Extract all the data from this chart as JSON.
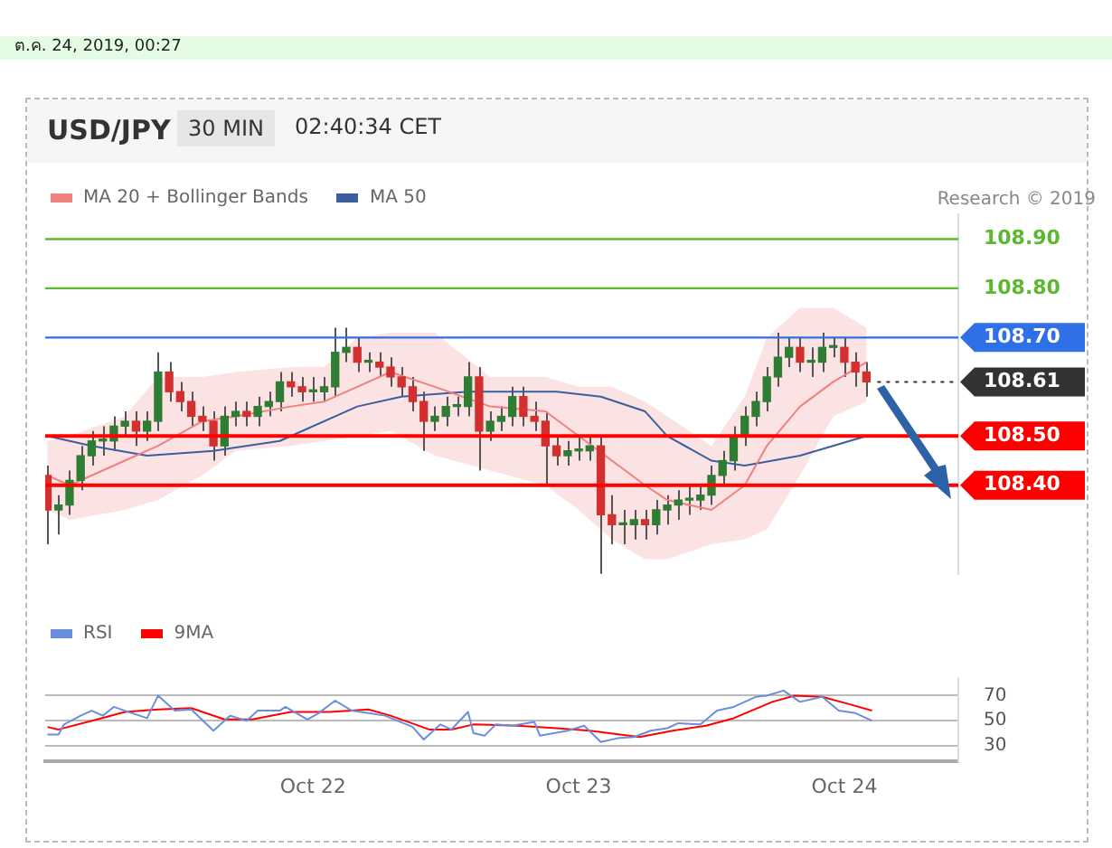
{
  "chart_data": [
    {
      "type": "candlestick",
      "title": "USD/JPY",
      "subtitle": "30 MIN",
      "annotations": [
        "ต.ค. 24, 2019, 00:27",
        "02:40:34 CET",
        "Research © 2019"
      ],
      "x": [
        "2019-10-21T00:00",
        "2019-10-21T01:00",
        "2019-10-21T02:00",
        "2019-10-21T03:00",
        "2019-10-21T04:00",
        "2019-10-21T05:00",
        "2019-10-21T06:00",
        "2019-10-21T07:00",
        "2019-10-21T08:00",
        "2019-10-21T09:00",
        "2019-10-21T10:00",
        "2019-10-21T11:00",
        "2019-10-21T12:00",
        "2019-10-21T13:00",
        "2019-10-21T14:00",
        "2019-10-21T15:00",
        "2019-10-21T16:00",
        "2019-10-21T17:00",
        "2019-10-21T18:00",
        "2019-10-21T19:00",
        "2019-10-21T20:00",
        "2019-10-21T21:00",
        "2019-10-21T22:00",
        "2019-10-21T23:00",
        "2019-10-22T00:00",
        "2019-10-22T01:00",
        "2019-10-22T02:00",
        "2019-10-22T03:00",
        "2019-10-22T04:00",
        "2019-10-22T05:00",
        "2019-10-22T06:00",
        "2019-10-22T07:00",
        "2019-10-22T08:00",
        "2019-10-22T09:00",
        "2019-10-22T10:00",
        "2019-10-22T11:00",
        "2019-10-22T12:00",
        "2019-10-22T13:00",
        "2019-10-22T14:00",
        "2019-10-22T15:00",
        "2019-10-22T16:00",
        "2019-10-22T17:00",
        "2019-10-22T18:00",
        "2019-10-22T19:00",
        "2019-10-22T20:00",
        "2019-10-22T21:00",
        "2019-10-22T22:00",
        "2019-10-22T23:00",
        "2019-10-23T00:00",
        "2019-10-23T01:00",
        "2019-10-23T02:00",
        "2019-10-23T03:00",
        "2019-10-23T04:00",
        "2019-10-23T05:00",
        "2019-10-23T06:00",
        "2019-10-23T07:00",
        "2019-10-23T08:00",
        "2019-10-23T09:00",
        "2019-10-23T10:00",
        "2019-10-23T11:00",
        "2019-10-23T12:00",
        "2019-10-23T13:00",
        "2019-10-23T14:00",
        "2019-10-23T15:00",
        "2019-10-23T16:00",
        "2019-10-23T17:00",
        "2019-10-23T18:00",
        "2019-10-23T19:00",
        "2019-10-23T20:00",
        "2019-10-23T21:00",
        "2019-10-23T22:00",
        "2019-10-23T23:00",
        "2019-10-24T00:00",
        "2019-10-24T01:00",
        "2019-10-24T02:00"
      ],
      "ohlc": [
        [
          108.42,
          108.44,
          108.28,
          108.35
        ],
        [
          108.35,
          108.38,
          108.3,
          108.36
        ],
        [
          108.36,
          108.43,
          108.34,
          108.41
        ],
        [
          108.41,
          108.48,
          108.39,
          108.46
        ],
        [
          108.46,
          108.51,
          108.44,
          108.49
        ],
        [
          108.49,
          108.52,
          108.46,
          108.49
        ],
        [
          108.49,
          108.54,
          108.47,
          108.52
        ],
        [
          108.52,
          108.55,
          108.5,
          108.53
        ],
        [
          108.53,
          108.55,
          108.48,
          108.51
        ],
        [
          108.51,
          108.55,
          108.49,
          108.53
        ],
        [
          108.53,
          108.67,
          108.51,
          108.63
        ],
        [
          108.63,
          108.65,
          108.57,
          108.59
        ],
        [
          108.59,
          108.61,
          108.55,
          108.57
        ],
        [
          108.57,
          108.59,
          108.52,
          108.54
        ],
        [
          108.54,
          108.56,
          108.51,
          108.53
        ],
        [
          108.53,
          108.55,
          108.45,
          108.48
        ],
        [
          108.48,
          108.56,
          108.46,
          108.54
        ],
        [
          108.54,
          108.57,
          108.52,
          108.55
        ],
        [
          108.55,
          108.57,
          108.52,
          108.54
        ],
        [
          108.54,
          108.58,
          108.52,
          108.56
        ],
        [
          108.56,
          108.59,
          108.54,
          108.57
        ],
        [
          108.57,
          108.63,
          108.55,
          108.61
        ],
        [
          108.61,
          108.63,
          108.58,
          108.6
        ],
        [
          108.6,
          108.62,
          108.57,
          108.59
        ],
        [
          108.59,
          108.62,
          108.57,
          108.59
        ],
        [
          108.59,
          108.62,
          108.57,
          108.6
        ],
        [
          108.6,
          108.72,
          108.58,
          108.67
        ],
        [
          108.67,
          108.72,
          108.65,
          108.68
        ],
        [
          108.68,
          108.7,
          108.63,
          108.65
        ],
        [
          108.65,
          108.67,
          108.63,
          108.65
        ],
        [
          108.65,
          108.67,
          108.62,
          108.64
        ],
        [
          108.64,
          108.66,
          108.6,
          108.62
        ],
        [
          108.62,
          108.64,
          108.58,
          108.6
        ],
        [
          108.6,
          108.62,
          108.55,
          108.57
        ],
        [
          108.57,
          108.59,
          108.47,
          108.53
        ],
        [
          108.53,
          108.56,
          108.51,
          108.54
        ],
        [
          108.54,
          108.58,
          108.52,
          108.56
        ],
        [
          108.56,
          108.58,
          108.54,
          108.56
        ],
        [
          108.56,
          108.65,
          108.54,
          108.62
        ],
        [
          108.62,
          108.64,
          108.43,
          108.51
        ],
        [
          108.51,
          108.55,
          108.49,
          108.53
        ],
        [
          108.53,
          108.56,
          108.51,
          108.54
        ],
        [
          108.54,
          108.6,
          108.52,
          108.58
        ],
        [
          108.58,
          108.6,
          108.52,
          108.54
        ],
        [
          108.54,
          108.57,
          108.51,
          108.53
        ],
        [
          108.53,
          108.55,
          108.4,
          108.48
        ],
        [
          108.48,
          108.5,
          108.44,
          108.46
        ],
        [
          108.46,
          108.49,
          108.44,
          108.47
        ],
        [
          108.47,
          108.5,
          108.45,
          108.47
        ],
        [
          108.47,
          108.5,
          108.45,
          108.48
        ],
        [
          108.48,
          108.5,
          108.22,
          108.34
        ],
        [
          108.34,
          108.38,
          108.28,
          108.32
        ],
        [
          108.32,
          108.35,
          108.28,
          108.32
        ],
        [
          108.32,
          108.35,
          108.29,
          108.33
        ],
        [
          108.33,
          108.35,
          108.29,
          108.32
        ],
        [
          108.32,
          108.37,
          108.3,
          108.35
        ],
        [
          108.35,
          108.38,
          108.32,
          108.36
        ],
        [
          108.36,
          108.39,
          108.33,
          108.37
        ],
        [
          108.37,
          108.4,
          108.34,
          108.37
        ],
        [
          108.37,
          108.4,
          108.35,
          108.38
        ],
        [
          108.38,
          108.44,
          108.36,
          108.42
        ],
        [
          108.42,
          108.47,
          108.4,
          108.45
        ],
        [
          108.45,
          108.52,
          108.43,
          108.5
        ],
        [
          108.5,
          108.56,
          108.48,
          108.54
        ],
        [
          108.54,
          108.59,
          108.52,
          108.57
        ],
        [
          108.57,
          108.64,
          108.55,
          108.62
        ],
        [
          108.62,
          108.71,
          108.6,
          108.66
        ],
        [
          108.66,
          108.7,
          108.64,
          108.68
        ],
        [
          108.68,
          108.7,
          108.63,
          108.65
        ],
        [
          108.65,
          108.68,
          108.62,
          108.65
        ],
        [
          108.65,
          108.71,
          108.63,
          108.68
        ],
        [
          108.68,
          108.7,
          108.66,
          108.68
        ],
        [
          108.68,
          108.7,
          108.62,
          108.65
        ],
        [
          108.65,
          108.67,
          108.6,
          108.63
        ],
        [
          108.63,
          108.65,
          108.58,
          108.61
        ]
      ],
      "series": [
        {
          "name": "MA 20 + Bollinger Bands",
          "type": "line",
          "color": "#f08080",
          "x": [
            "2019-10-21T00:00",
            "2019-10-21T02:00",
            "2019-10-21T07:00",
            "2019-10-21T10:00",
            "2019-10-21T14:00",
            "2019-10-21T17:00",
            "2019-10-21T22:00",
            "2019-10-22T01:00",
            "2019-10-22T04:00",
            "2019-10-22T07:00",
            "2019-10-22T11:00",
            "2019-10-22T16:00",
            "2019-10-22T21:00",
            "2019-10-23T00:00",
            "2019-10-23T03:00",
            "2019-10-23T06:00",
            "2019-10-23T08:00",
            "2019-10-23T12:00",
            "2019-10-23T15:00",
            "2019-10-23T17:00",
            "2019-10-23T20:00",
            "2019-10-23T23:00",
            "2019-10-24T02:00"
          ],
          "values": [
            108.42,
            108.4,
            108.45,
            108.48,
            108.53,
            108.54,
            108.56,
            108.57,
            108.6,
            108.63,
            108.6,
            108.56,
            108.55,
            108.5,
            108.45,
            108.4,
            108.37,
            108.35,
            108.4,
            108.48,
            108.56,
            108.61,
            108.65
          ],
          "lower": [
            108.35,
            108.33,
            108.35,
            108.37,
            108.42,
            108.47,
            108.48,
            108.49,
            108.5,
            108.51,
            108.46,
            108.43,
            108.4,
            108.35,
            108.29,
            108.25,
            108.25,
            108.28,
            108.29,
            108.31,
            108.42,
            108.54,
            108.57
          ],
          "upper": [
            108.49,
            108.5,
            108.54,
            108.62,
            108.62,
            108.63,
            108.64,
            108.64,
            108.7,
            108.71,
            108.71,
            108.62,
            108.62,
            108.6,
            108.6,
            108.57,
            108.54,
            108.48,
            108.58,
            108.7,
            108.76,
            108.76,
            108.72
          ]
        },
        {
          "name": "MA 50",
          "type": "line",
          "color": "#3a5fa0",
          "x": [
            "2019-10-21T00:00",
            "2019-10-21T04:00",
            "2019-10-21T09:00",
            "2019-10-21T15:00",
            "2019-10-21T21:00",
            "2019-10-22T04:00",
            "2019-10-22T08:00",
            "2019-10-22T14:00",
            "2019-10-22T22:00",
            "2019-10-23T02:00",
            "2019-10-23T06:00",
            "2019-10-23T08:00",
            "2019-10-23T12:00",
            "2019-10-23T15:00",
            "2019-10-23T20:00",
            "2019-10-24T02:00"
          ],
          "values": [
            108.5,
            108.48,
            108.46,
            108.47,
            108.49,
            108.56,
            108.58,
            108.59,
            108.59,
            108.58,
            108.55,
            108.5,
            108.45,
            108.44,
            108.46,
            108.5
          ]
        }
      ],
      "xlim": [
        "2019-10-20T23:48",
        "2019-10-24T10:18"
      ],
      "ylim": [
        108.22,
        108.95
      ],
      "yticks": [
        {
          "value": 108.4,
          "label": "108.40"
        },
        {
          "value": 108.5,
          "label": "108.50"
        },
        {
          "value": 108.61,
          "label": "108.61"
        },
        {
          "value": 108.7,
          "label": "108.70"
        },
        {
          "value": 108.8,
          "label": "108.80"
        },
        {
          "value": 108.9,
          "label": "108.90"
        }
      ],
      "tick_labels": "y",
      "legend": "top left",
      "marker": "none",
      "ref_lines": [
        {
          "axis": "y",
          "value": 108.9,
          "color": "#5cb82e"
        },
        {
          "axis": "y",
          "value": 108.8,
          "color": "#5cb82e"
        },
        {
          "axis": "y",
          "value": 108.7,
          "color": "#2f6fe8"
        },
        {
          "axis": "y",
          "value": 108.61,
          "color": "#333333",
          "line_style": "dotted"
        },
        {
          "axis": "y",
          "value": 108.5,
          "color": "#ff0000"
        },
        {
          "axis": "y",
          "value": 108.4,
          "color": "#ff0000"
        }
      ]
    },
    {
      "type": "line",
      "series": [
        {
          "name": "RSI",
          "color": "#6a8de0",
          "x": [
            "2019-10-21T00:00",
            "2019-10-21T01:00",
            "2019-10-21T01:30",
            "2019-10-21T03:00",
            "2019-10-21T04:00",
            "2019-10-21T05:00",
            "2019-10-21T06:00",
            "2019-10-21T07:00",
            "2019-10-21T09:00",
            "2019-10-21T10:00",
            "2019-10-21T11:30",
            "2019-10-21T13:00",
            "2019-10-21T15:00",
            "2019-10-21T16:30",
            "2019-10-21T18:00",
            "2019-10-21T19:00",
            "2019-10-21T21:00",
            "2019-10-21T21:30",
            "2019-10-21T23:30",
            "2019-10-22T00:30",
            "2019-10-22T02:00",
            "2019-10-22T03:30",
            "2019-10-22T05:00",
            "2019-10-22T06:30",
            "2019-10-22T09:00",
            "2019-10-22T10:00",
            "2019-10-22T11:30",
            "2019-10-22T12:30",
            "2019-10-22T14:00",
            "2019-10-22T14:30",
            "2019-10-22T15:30",
            "2019-10-22T16:30",
            "2019-10-22T18:00",
            "2019-10-22T20:00",
            "2019-10-22T20:30",
            "2019-10-22T23:00",
            "2019-10-23T00:30",
            "2019-10-23T02:00",
            "2019-10-23T03:30",
            "2019-10-23T05:00",
            "2019-10-23T06:30",
            "2019-10-23T08:00",
            "2019-10-23T09:00",
            "2019-10-23T11:00",
            "2019-10-23T12:30",
            "2019-10-23T14:00",
            "2019-10-23T16:00",
            "2019-10-23T17:00",
            "2019-10-23T18:30",
            "2019-10-23T20:00",
            "2019-10-23T22:00",
            "2019-10-23T23:30",
            "2019-10-24T01:00",
            "2019-10-24T02:30"
          ],
          "values": [
            39,
            39,
            47,
            54,
            58,
            54,
            61,
            58,
            52,
            70,
            58,
            59,
            42,
            54,
            50,
            58,
            58,
            61,
            51,
            56,
            66,
            58,
            56,
            54,
            45,
            35,
            47,
            43,
            57,
            40,
            38,
            47,
            46,
            49,
            38,
            42,
            46,
            33,
            36,
            37,
            42,
            44,
            48,
            47,
            58,
            61,
            69,
            70,
            74,
            65,
            69,
            58,
            56,
            50
          ]
        },
        {
          "name": "9MA",
          "color": "#ff0000",
          "x": [
            "2019-10-21T00:00",
            "2019-10-21T01:00",
            "2019-10-21T04:30",
            "2019-10-21T07:00",
            "2019-10-21T10:00",
            "2019-10-21T13:00",
            "2019-10-21T16:00",
            "2019-10-21T18:30",
            "2019-10-21T22:00",
            "2019-10-22T01:30",
            "2019-10-22T05:00",
            "2019-10-22T07:00",
            "2019-10-22T10:30",
            "2019-10-22T12:30",
            "2019-10-22T14:30",
            "2019-10-22T18:30",
            "2019-10-22T22:00",
            "2019-10-23T01:00",
            "2019-10-23T05:30",
            "2019-10-23T08:30",
            "2019-10-23T11:30",
            "2019-10-23T14:00",
            "2019-10-23T17:30",
            "2019-10-23T19:30",
            "2019-10-23T22:00",
            "2019-10-24T00:30",
            "2019-10-24T02:30"
          ],
          "values": [
            45,
            43,
            51,
            57,
            59,
            60,
            51,
            51,
            57,
            57,
            59,
            54,
            43,
            43,
            47,
            46,
            44,
            42,
            37,
            42,
            46,
            52,
            65,
            70,
            69,
            63,
            58
          ]
        }
      ],
      "xlim": [
        "2019-10-20T23:48",
        "2019-10-24T10:18"
      ],
      "xticks": [
        {
          "value": "2019-10-22",
          "label": "Oct 22"
        },
        {
          "value": "2019-10-23",
          "label": "Oct 23"
        },
        {
          "value": "2019-10-24",
          "label": "Oct 24"
        }
      ],
      "ylim": [
        18,
        84
      ],
      "yticks": [
        30,
        50,
        70
      ],
      "grid": "y",
      "legend": "top left",
      "marker": "none"
    }
  ]
}
